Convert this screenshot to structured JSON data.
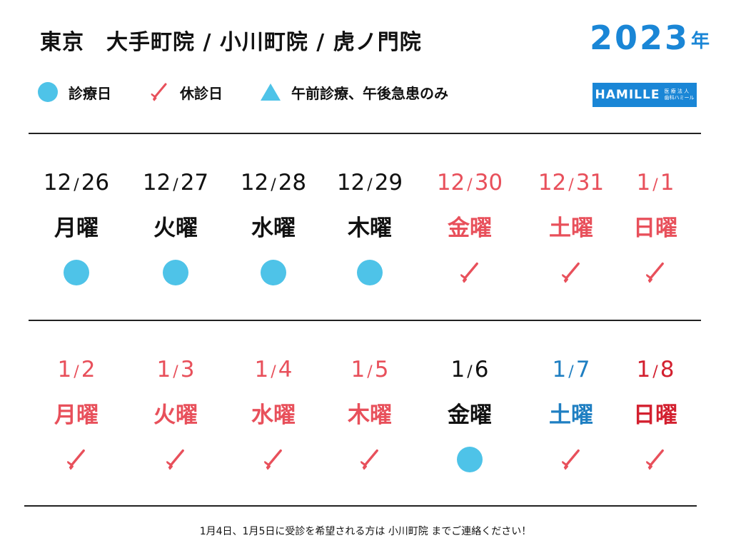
{
  "header": {
    "title": "東京　大手町院 / 小川町院 / 虎ノ門院",
    "year": "2023",
    "year_suffix": "年"
  },
  "legend": [
    {
      "label": "診療日",
      "icon": "filled-circle-icon"
    },
    {
      "label": "休診日",
      "icon": "toothbrush-icon"
    },
    {
      "label": "午前診療、午後急患のみ",
      "icon": "triangle-icon"
    }
  ],
  "logo": {
    "name": "HAMILLE",
    "sub_line1": "医 療 法 人",
    "sub_line2": "歯科ハミール"
  },
  "colors": {
    "open": "#4ec3e8",
    "closed": "#e8505b",
    "brand": "#1a86d6",
    "saturday": "#1f7fc2",
    "sunday": "#d3202f"
  },
  "weeks": [
    [
      {
        "month": "12",
        "day": "26",
        "dow": "月曜",
        "status": "open",
        "color": "black"
      },
      {
        "month": "12",
        "day": "27",
        "dow": "火曜",
        "status": "open",
        "color": "black"
      },
      {
        "month": "12",
        "day": "28",
        "dow": "水曜",
        "status": "open",
        "color": "black"
      },
      {
        "month": "12",
        "day": "29",
        "dow": "木曜",
        "status": "open",
        "color": "black"
      },
      {
        "month": "12",
        "day": "30",
        "dow": "金曜",
        "status": "closed",
        "color": "red"
      },
      {
        "month": "12",
        "day": "31",
        "dow": "土曜",
        "status": "closed",
        "color": "red"
      },
      {
        "month": "1",
        "day": "1",
        "dow": "日曜",
        "status": "closed",
        "color": "red"
      }
    ],
    [
      {
        "month": "1",
        "day": "2",
        "dow": "月曜",
        "status": "closed",
        "color": "red"
      },
      {
        "month": "1",
        "day": "3",
        "dow": "火曜",
        "status": "closed",
        "color": "red"
      },
      {
        "month": "1",
        "day": "4",
        "dow": "水曜",
        "status": "closed",
        "color": "red"
      },
      {
        "month": "1",
        "day": "5",
        "dow": "木曜",
        "status": "closed",
        "color": "red"
      },
      {
        "month": "1",
        "day": "6",
        "dow": "金曜",
        "status": "open",
        "color": "black"
      },
      {
        "month": "1",
        "day": "7",
        "dow": "土曜",
        "status": "closed",
        "color": "blue"
      },
      {
        "month": "1",
        "day": "8",
        "dow": "日曜",
        "status": "closed",
        "color": "deepred"
      }
    ]
  ],
  "footer_note": "1月4日、1月5日に受診を希望される方は 小川町院 までご連絡ください！"
}
